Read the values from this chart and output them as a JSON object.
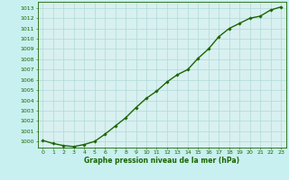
{
  "x": [
    0,
    1,
    2,
    3,
    4,
    5,
    6,
    7,
    8,
    9,
    10,
    11,
    12,
    13,
    14,
    15,
    16,
    17,
    18,
    19,
    20,
    21,
    22,
    23
  ],
  "y": [
    1000.1,
    999.8,
    999.6,
    999.5,
    999.7,
    1000.0,
    1000.7,
    1001.5,
    1002.3,
    1003.3,
    1004.2,
    1004.9,
    1005.8,
    1006.5,
    1007.0,
    1008.1,
    1009.0,
    1010.2,
    1011.0,
    1011.5,
    1012.0,
    1012.2,
    1012.8,
    1013.1
  ],
  "ylim": [
    999.4,
    1013.6
  ],
  "yticks": [
    1000,
    1001,
    1002,
    1003,
    1004,
    1005,
    1006,
    1007,
    1008,
    1009,
    1010,
    1011,
    1012,
    1013
  ],
  "xlim": [
    -0.5,
    23.5
  ],
  "xticks": [
    0,
    1,
    2,
    3,
    4,
    5,
    6,
    7,
    8,
    9,
    10,
    11,
    12,
    13,
    14,
    15,
    16,
    17,
    18,
    19,
    20,
    21,
    22,
    23
  ],
  "line_color": "#1a6600",
  "marker": "D",
  "marker_size": 1.8,
  "bg_color": "#c8f0f0",
  "plot_bg_color": "#d8f0f0",
  "grid_color": "#b0d8d8",
  "xlabel": "Graphe pression niveau de la mer (hPa)",
  "xlabel_fontsize": 5.5,
  "tick_fontsize": 4.5,
  "linewidth": 1.0
}
